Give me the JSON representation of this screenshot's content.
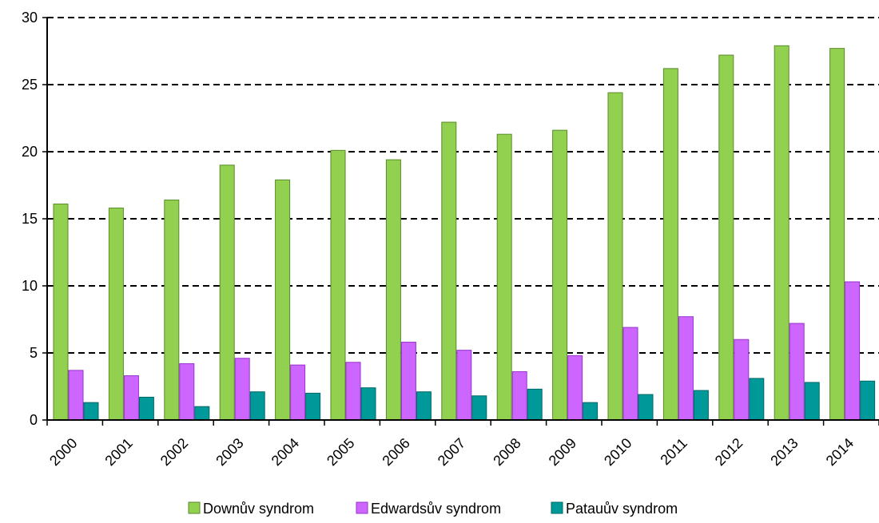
{
  "chart_data": {
    "type": "bar",
    "categories": [
      "2000",
      "2001",
      "2002",
      "2003",
      "2004",
      "2005",
      "2006",
      "2007",
      "2008",
      "2009",
      "2010",
      "2011",
      "2012",
      "2013",
      "2014"
    ],
    "series": [
      {
        "name": "Downův syndrom",
        "color": "#92d050",
        "stroke": "#5a8a2a",
        "values": [
          16.1,
          15.8,
          16.4,
          19.0,
          17.9,
          20.1,
          19.4,
          22.2,
          21.3,
          21.6,
          24.4,
          26.2,
          27.2,
          27.9,
          27.7
        ]
      },
      {
        "name": "Edwardsův syndrom",
        "color": "#cc66ff",
        "stroke": "#9933cc",
        "values": [
          3.7,
          3.3,
          4.2,
          4.6,
          4.1,
          4.3,
          5.8,
          5.2,
          3.6,
          4.8,
          6.9,
          7.7,
          6.0,
          7.2,
          10.3
        ]
      },
      {
        "name": "Patauův syndrom",
        "color": "#009999",
        "stroke": "#006666",
        "values": [
          1.3,
          1.7,
          1.0,
          2.1,
          2.0,
          2.4,
          2.1,
          1.8,
          2.3,
          1.3,
          1.9,
          2.2,
          3.1,
          2.8,
          2.9
        ]
      }
    ],
    "title": "",
    "xlabel": "",
    "ylabel": "",
    "ylim": [
      0,
      30
    ],
    "yticks": [
      "0",
      "5",
      "10",
      "15",
      "20",
      "25",
      "30"
    ],
    "grid": "horizontal-dashed",
    "legend_position": "bottom"
  }
}
